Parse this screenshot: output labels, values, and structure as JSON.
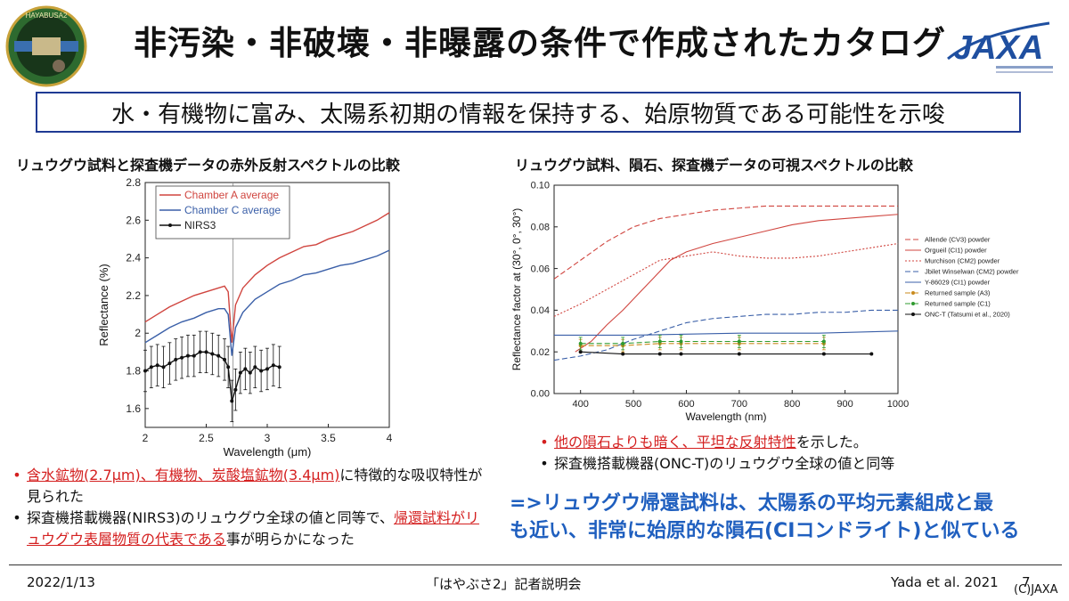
{
  "header": {
    "title": "非汚染・非破壊・非曝露の条件で作成されたカタログ",
    "mission_badge_text": "HAYABUSA2",
    "agency_logo_text": "JAXA"
  },
  "banner": {
    "text": "水・有機物に富み、太陽系初期の情報を保持する、始原物質である可能性を示唆"
  },
  "left_panel": {
    "heading": "リュウグウ試料と探査機データの赤外反射スペクトルの比較",
    "bullets": [
      {
        "parts": [
          {
            "text": "含水鉱物(2.7μm)、有機物、炭酸塩鉱物(3.4μm)",
            "highlight": true
          },
          {
            "text": "に特徴的な吸収特性が見られた",
            "highlight": false
          }
        ],
        "color": "#d42020"
      },
      {
        "parts": [
          {
            "text": "探査機搭載機器(NIRS3)のリュウグウ全球の値と同等で、",
            "highlight": false
          },
          {
            "text": "帰還試料がリュウグウ表層物質の代表である",
            "highlight": true
          },
          {
            "text": "事が明らかになった",
            "highlight": false
          }
        ],
        "color": "#111111"
      }
    ]
  },
  "right_panel": {
    "heading": "リュウグウ試料、隕石、探査機データの可視スペクトルの比較",
    "bullets": [
      {
        "parts": [
          {
            "text": "他の隕石よりも暗く、平坦な反射特性",
            "highlight": true
          },
          {
            "text": "を示した。",
            "highlight": false
          }
        ],
        "color": "#d42020"
      },
      {
        "parts": [
          {
            "text": "探査機搭載機器(ONC-T)のリュウグウ全球の値と同等",
            "highlight": false
          }
        ],
        "color": "#111111"
      }
    ],
    "conclusion": [
      "=>リュウグウ帰還試料は、太陽系の平均元素組成と最",
      "も近い、非常に始原的な隕石(CIコンドライト)と似ている"
    ]
  },
  "footer": {
    "date": "2022/1/13",
    "event": "「はやぶさ2」記者説明会",
    "citation": "Yada et al. 2021",
    "page": "7",
    "copyright": "(C)JAXA"
  },
  "chart_data": [
    {
      "type": "line",
      "title": "",
      "xlabel": "Wavelength (μm)",
      "ylabel": "Reflectance (%)",
      "xlim": [
        2,
        4
      ],
      "ylim": [
        1.5,
        2.8
      ],
      "x_ticks": [
        "2",
        "2.5",
        "3",
        "3.5",
        "4"
      ],
      "y_ticks": [
        "1.6",
        "1.8",
        "2",
        "2.2",
        "2.4",
        "2.6",
        "2.8"
      ],
      "legend_position": "top-left",
      "series": [
        {
          "name": "Chamber A average",
          "color": "#d0453f",
          "style": "solid",
          "points": [
            [
              2.0,
              2.06
            ],
            [
              2.1,
              2.1
            ],
            [
              2.2,
              2.14
            ],
            [
              2.3,
              2.17
            ],
            [
              2.4,
              2.2
            ],
            [
              2.5,
              2.22
            ],
            [
              2.6,
              2.24
            ],
            [
              2.65,
              2.25
            ],
            [
              2.68,
              2.22
            ],
            [
              2.71,
              1.95
            ],
            [
              2.74,
              2.15
            ],
            [
              2.8,
              2.24
            ],
            [
              2.9,
              2.31
            ],
            [
              3.0,
              2.36
            ],
            [
              3.1,
              2.4
            ],
            [
              3.2,
              2.43
            ],
            [
              3.3,
              2.46
            ],
            [
              3.4,
              2.47
            ],
            [
              3.5,
              2.5
            ],
            [
              3.6,
              2.52
            ],
            [
              3.7,
              2.54
            ],
            [
              3.8,
              2.57
            ],
            [
              3.9,
              2.6
            ],
            [
              4.0,
              2.64
            ]
          ]
        },
        {
          "name": "Chamber C average",
          "color": "#3a5fa8",
          "style": "solid",
          "points": [
            [
              2.0,
              1.95
            ],
            [
              2.1,
              1.99
            ],
            [
              2.2,
              2.03
            ],
            [
              2.3,
              2.06
            ],
            [
              2.4,
              2.08
            ],
            [
              2.5,
              2.11
            ],
            [
              2.6,
              2.13
            ],
            [
              2.65,
              2.13
            ],
            [
              2.68,
              2.1
            ],
            [
              2.71,
              1.88
            ],
            [
              2.74,
              2.03
            ],
            [
              2.8,
              2.11
            ],
            [
              2.9,
              2.18
            ],
            [
              3.0,
              2.22
            ],
            [
              3.1,
              2.26
            ],
            [
              3.2,
              2.28
            ],
            [
              3.3,
              2.31
            ],
            [
              3.4,
              2.32
            ],
            [
              3.5,
              2.34
            ],
            [
              3.6,
              2.36
            ],
            [
              3.7,
              2.37
            ],
            [
              3.8,
              2.39
            ],
            [
              3.9,
              2.41
            ],
            [
              4.0,
              2.44
            ]
          ]
        },
        {
          "name": "NIRS3",
          "color": "#111111",
          "style": "solid-marker",
          "error": 0.11,
          "points": [
            [
              2.0,
              1.8
            ],
            [
              2.05,
              1.82
            ],
            [
              2.1,
              1.83
            ],
            [
              2.15,
              1.82
            ],
            [
              2.2,
              1.84
            ],
            [
              2.25,
              1.86
            ],
            [
              2.3,
              1.87
            ],
            [
              2.35,
              1.88
            ],
            [
              2.4,
              1.88
            ],
            [
              2.45,
              1.9
            ],
            [
              2.5,
              1.9
            ],
            [
              2.55,
              1.89
            ],
            [
              2.6,
              1.88
            ],
            [
              2.65,
              1.86
            ],
            [
              2.68,
              1.82
            ],
            [
              2.71,
              1.64
            ],
            [
              2.74,
              1.7
            ],
            [
              2.78,
              1.79
            ],
            [
              2.82,
              1.81
            ],
            [
              2.86,
              1.79
            ],
            [
              2.9,
              1.82
            ],
            [
              2.95,
              1.8
            ],
            [
              3.0,
              1.81
            ],
            [
              3.05,
              1.83
            ],
            [
              3.1,
              1.82
            ]
          ]
        }
      ]
    },
    {
      "type": "line",
      "title": "",
      "xlabel": "Wavelength (nm)",
      "ylabel": "Reflectance factor at (30°, 0°, 30°)",
      "xlim": [
        350,
        1000
      ],
      "ylim": [
        0,
        0.1
      ],
      "x_ticks": [
        "400",
        "500",
        "600",
        "700",
        "800",
        "900",
        "1000"
      ],
      "y_ticks": [
        "0.00",
        "0.02",
        "0.04",
        "0.06",
        "0.08",
        "0.10"
      ],
      "legend_position": "right",
      "series": [
        {
          "name": "Allende (CV3) powder",
          "color": "#d0453f",
          "style": "dash",
          "points": [
            [
              350,
              0.055
            ],
            [
              400,
              0.064
            ],
            [
              450,
              0.073
            ],
            [
              500,
              0.08
            ],
            [
              550,
              0.084
            ],
            [
              600,
              0.086
            ],
            [
              650,
              0.088
            ],
            [
              700,
              0.089
            ],
            [
              750,
              0.09
            ],
            [
              800,
              0.09
            ],
            [
              850,
              0.09
            ],
            [
              900,
              0.09
            ],
            [
              950,
              0.09
            ],
            [
              1000,
              0.09
            ]
          ]
        },
        {
          "name": "Orgueil (CI1) powder",
          "color": "#d0453f",
          "style": "solid",
          "points": [
            [
              390,
              0.02
            ],
            [
              420,
              0.025
            ],
            [
              450,
              0.033
            ],
            [
              480,
              0.04
            ],
            [
              510,
              0.048
            ],
            [
              540,
              0.056
            ],
            [
              570,
              0.064
            ],
            [
              600,
              0.068
            ],
            [
              650,
              0.072
            ],
            [
              700,
              0.075
            ],
            [
              750,
              0.078
            ],
            [
              800,
              0.081
            ],
            [
              850,
              0.083
            ],
            [
              900,
              0.084
            ],
            [
              950,
              0.085
            ],
            [
              1000,
              0.086
            ]
          ]
        },
        {
          "name": "Murchison (CM2) powder",
          "color": "#d0453f",
          "style": "dot",
          "points": [
            [
              350,
              0.037
            ],
            [
              400,
              0.043
            ],
            [
              450,
              0.05
            ],
            [
              500,
              0.057
            ],
            [
              550,
              0.064
            ],
            [
              600,
              0.066
            ],
            [
              650,
              0.068
            ],
            [
              700,
              0.066
            ],
            [
              750,
              0.065
            ],
            [
              800,
              0.065
            ],
            [
              850,
              0.066
            ],
            [
              900,
              0.068
            ],
            [
              950,
              0.07
            ],
            [
              1000,
              0.072
            ]
          ]
        },
        {
          "name": "Jbilet Winselwan (CM2) powder",
          "color": "#3a5fa8",
          "style": "dash",
          "points": [
            [
              350,
              0.016
            ],
            [
              400,
              0.018
            ],
            [
              450,
              0.021
            ],
            [
              500,
              0.026
            ],
            [
              550,
              0.03
            ],
            [
              600,
              0.034
            ],
            [
              650,
              0.036
            ],
            [
              700,
              0.037
            ],
            [
              750,
              0.038
            ],
            [
              800,
              0.038
            ],
            [
              850,
              0.039
            ],
            [
              900,
              0.039
            ],
            [
              950,
              0.04
            ],
            [
              1000,
              0.04
            ]
          ]
        },
        {
          "name": "Y-86029 (CI1) powder",
          "color": "#3a5fa8",
          "style": "solid",
          "points": [
            [
              350,
              0.028
            ],
            [
              500,
              0.028
            ],
            [
              700,
              0.029
            ],
            [
              850,
              0.029
            ],
            [
              1000,
              0.03
            ]
          ]
        },
        {
          "name": "Returned sample (A3)",
          "color": "#c98b1e",
          "style": "dash-marker",
          "error": 0.003,
          "points": [
            [
              400,
              0.023
            ],
            [
              480,
              0.023
            ],
            [
              550,
              0.024
            ],
            [
              590,
              0.024
            ],
            [
              700,
              0.024
            ],
            [
              860,
              0.024
            ]
          ]
        },
        {
          "name": "Returned sample (C1)",
          "color": "#2f9b2f",
          "style": "dash-marker",
          "error": 0.003,
          "points": [
            [
              400,
              0.024
            ],
            [
              480,
              0.024
            ],
            [
              550,
              0.025
            ],
            [
              590,
              0.025
            ],
            [
              700,
              0.025
            ],
            [
              860,
              0.025
            ]
          ]
        },
        {
          "name": "ONC-T (Tatsumi et al., 2020)",
          "color": "#111111",
          "style": "solid-marker",
          "points": [
            [
              400,
              0.02
            ],
            [
              480,
              0.019
            ],
            [
              550,
              0.019
            ],
            [
              590,
              0.019
            ],
            [
              700,
              0.019
            ],
            [
              860,
              0.019
            ],
            [
              950,
              0.019
            ]
          ]
        }
      ]
    }
  ]
}
